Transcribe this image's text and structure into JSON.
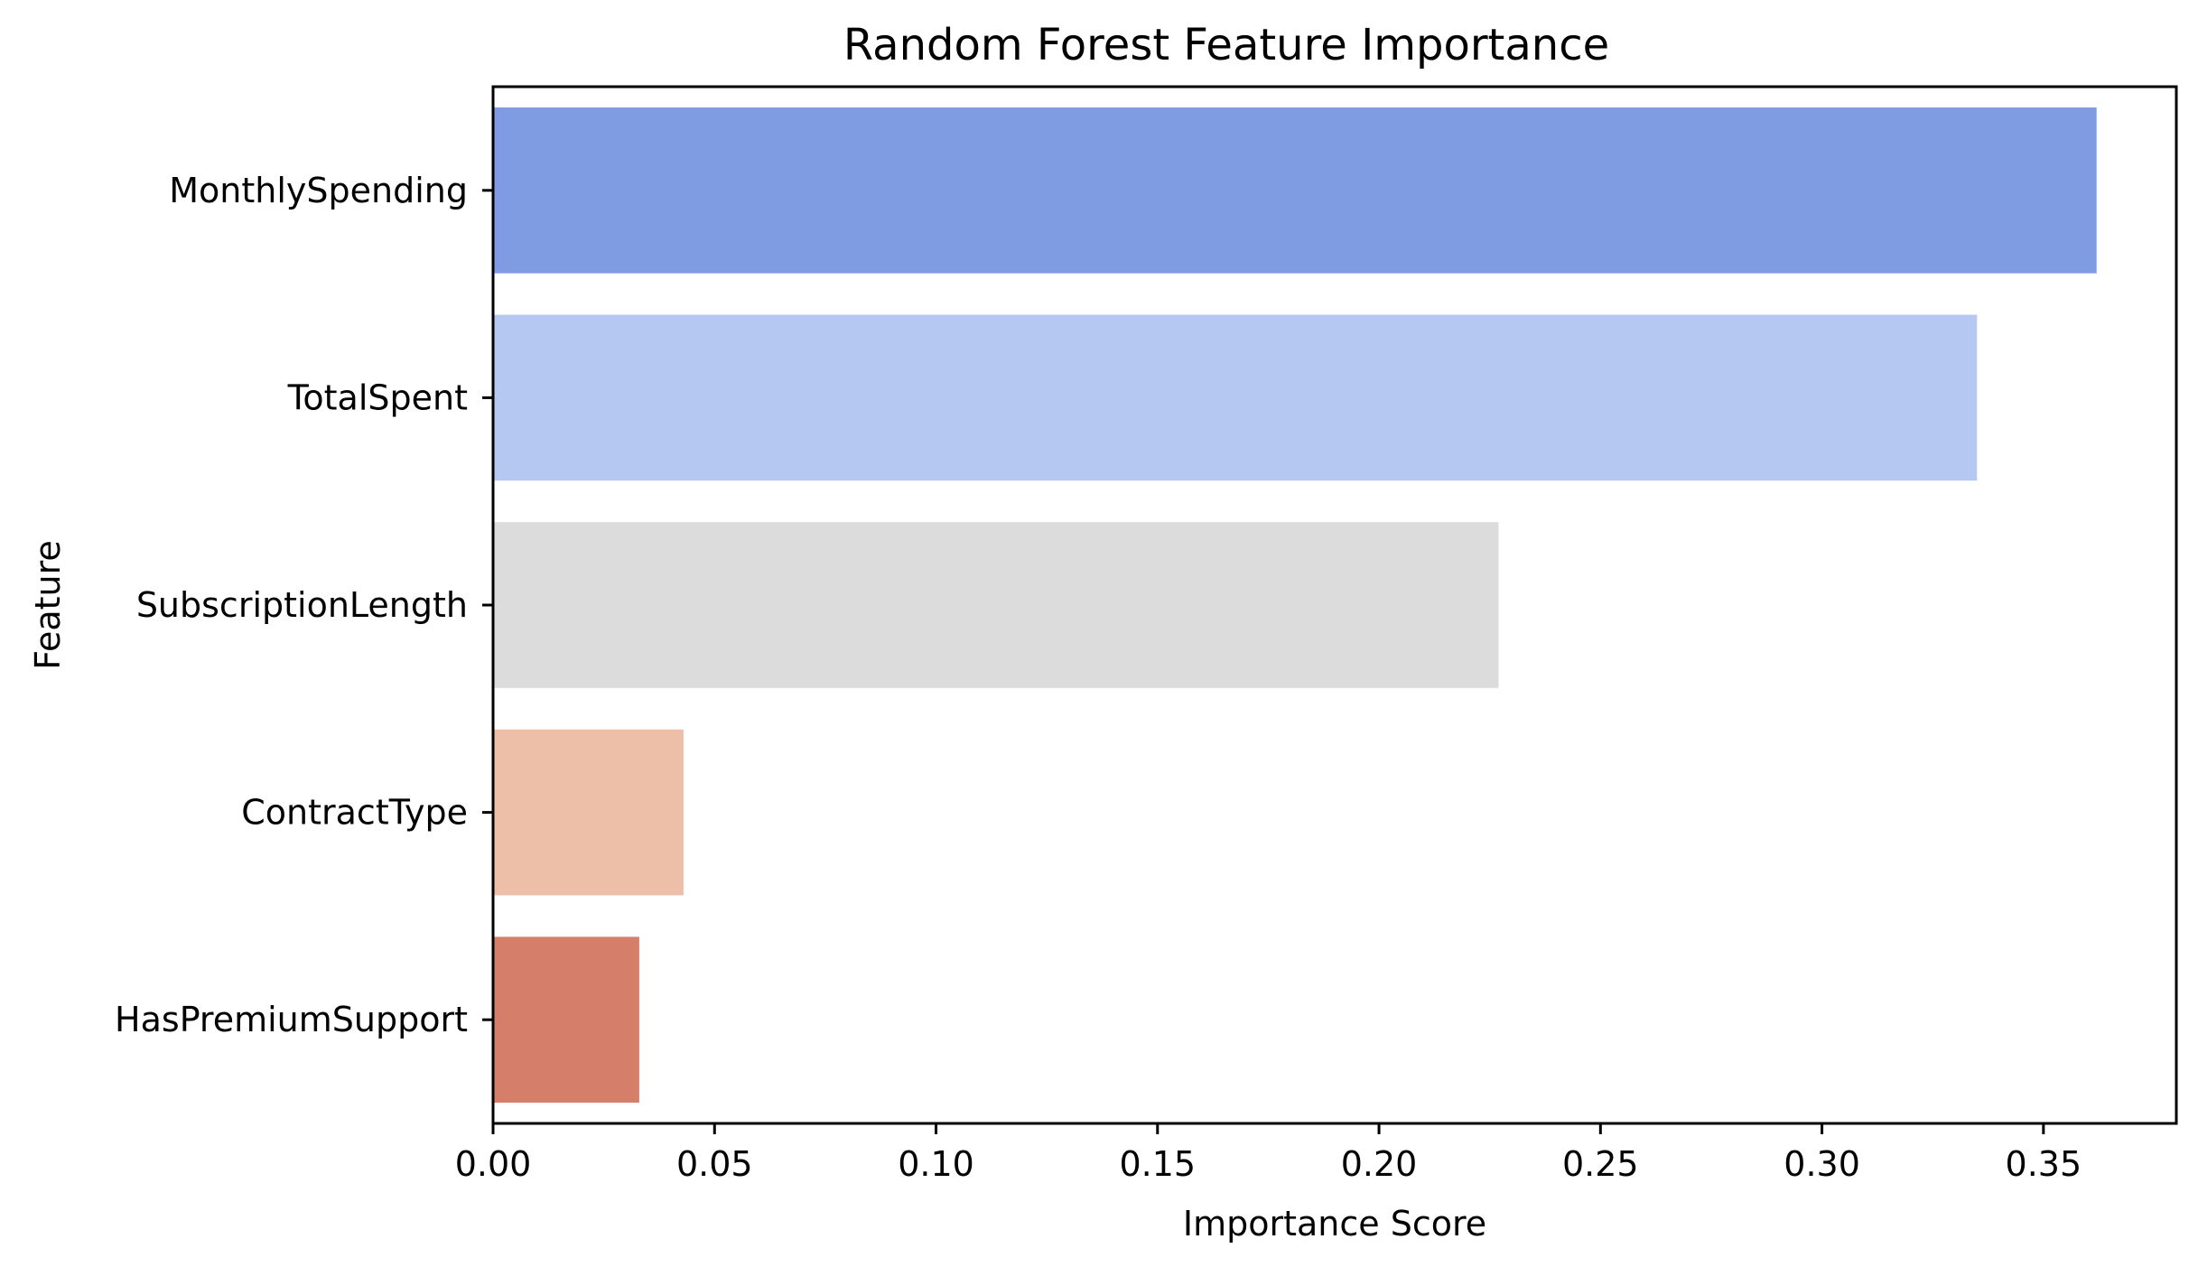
{
  "chart_data": {
    "type": "bar",
    "orientation": "horizontal",
    "title": "Random Forest Feature Importance",
    "xlabel": "Importance Score",
    "ylabel": "Feature",
    "categories": [
      "MonthlySpending",
      "TotalSpent",
      "SubscriptionLength",
      "ContractType",
      "HasPremiumSupport"
    ],
    "values": [
      0.362,
      0.335,
      0.227,
      0.043,
      0.033
    ],
    "colors": [
      "#7f9ce3",
      "#b4c8f2",
      "#dcdcdc",
      "#edbfa8",
      "#d57f6b"
    ],
    "xlim": [
      0,
      0.38
    ],
    "xticks": [
      0.0,
      0.05,
      0.1,
      0.15,
      0.2,
      0.25,
      0.3,
      0.35
    ],
    "xtick_labels": [
      "0.00",
      "0.05",
      "0.10",
      "0.15",
      "0.20",
      "0.25",
      "0.30",
      "0.35"
    ],
    "grid": false,
    "legend": "none"
  }
}
